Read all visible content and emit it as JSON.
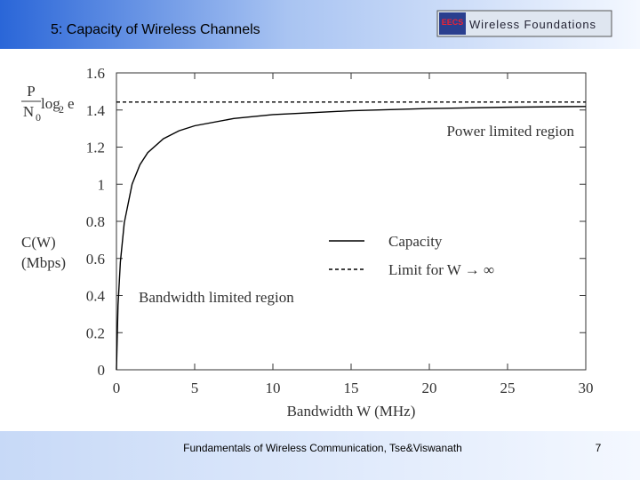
{
  "slide": {
    "title": "5: Capacity of Wireless Channels",
    "logo_left": "EECS",
    "logo_right": "Wireless Foundations",
    "footer": "Fundamentals of Wireless Communication, Tse&Viswanath",
    "page": "7"
  },
  "chart_data": {
    "type": "line",
    "x": [
      0,
      0.1,
      0.25,
      0.5,
      1,
      1.5,
      2,
      3,
      4,
      5,
      7.5,
      10,
      15,
      20,
      25,
      30
    ],
    "series": [
      {
        "name": "Capacity",
        "color": "#000000",
        "style": "solid",
        "values": [
          0,
          0.346,
          0.58,
          0.792,
          1,
          1.105,
          1.17,
          1.245,
          1.288,
          1.315,
          1.354,
          1.375,
          1.396,
          1.408,
          1.415,
          1.419
        ]
      },
      {
        "name": "Limit for W → ∞",
        "color": "#000000",
        "style": "dashed",
        "values": [
          1.443,
          1.443,
          1.443,
          1.443,
          1.443,
          1.443,
          1.443,
          1.443,
          1.443,
          1.443,
          1.443,
          1.443,
          1.443,
          1.443,
          1.443,
          1.443
        ]
      }
    ],
    "xlim": [
      0,
      30
    ],
    "xticks": [
      0,
      5,
      10,
      15,
      20,
      25,
      30
    ],
    "ylim": [
      0,
      1.6
    ],
    "yticks": [
      0,
      0.2,
      0.4,
      0.6,
      0.8,
      1,
      1.2,
      1.4,
      1.6
    ],
    "xlabel": "Bandwidth W (MHz)",
    "ylabel": [
      "C(W)",
      "(Mbps)"
    ],
    "limit_label": {
      "numerator": "P",
      "denominator": "N",
      "denominator_sub": "0",
      "func": "log",
      "func_sub": "2",
      "arg": "e"
    },
    "annotations": [
      "Power limited region",
      "Bandwidth limited region"
    ],
    "grid": false
  }
}
